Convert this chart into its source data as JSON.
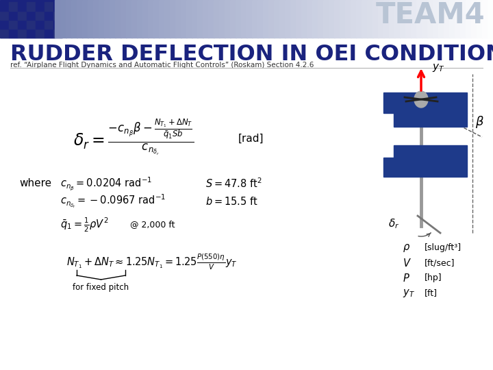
{
  "title": "RUDDER DEFLECTION IN OEI CONDITIONS",
  "team_label": "TEAM4",
  "ref_text": "ref. “Airplane Flight Dynamics and Automatic Flight Controls” (Roskam) Section 4.2.6",
  "title_color": "#1a237e",
  "slide_bg": "#ffffff",
  "rad_label": "[rad]",
  "where_label": "where",
  "eq5_suffix": "@ 2,000 ft",
  "fixed_pitch_label": "for fixed pitch",
  "legend_items": [
    [
      "$\\rho$",
      "[slug/ft³]"
    ],
    [
      "$V$",
      "[ft/sec]"
    ],
    [
      "$P$",
      "[hp]"
    ],
    [
      "$y_T$",
      "[ft]"
    ]
  ]
}
